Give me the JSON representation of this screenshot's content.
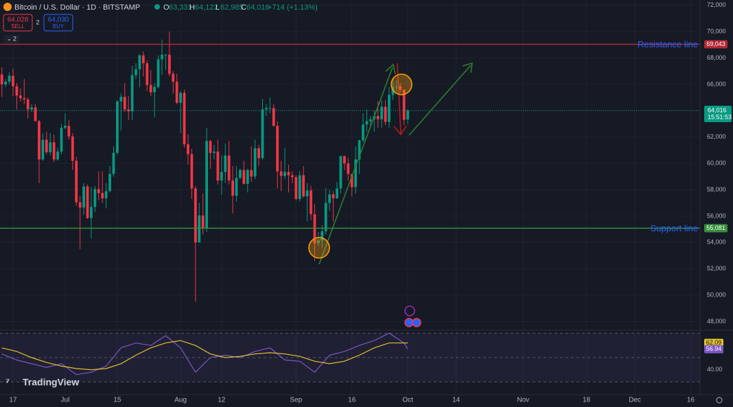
{
  "header": {
    "symbol": "Bitcoin / U.S. Dollar · 1D · BITSTAMP",
    "ohlc": [
      {
        "key": "O",
        "value": "63,331"
      },
      {
        "key": "H",
        "value": "64,122"
      },
      {
        "key": "L",
        "value": "62,985"
      },
      {
        "key": "C",
        "value": "64,016"
      }
    ],
    "change": "+714 (+1.13%)"
  },
  "trade": {
    "sell_price": "64,028",
    "sell": "SELL",
    "spread": "2",
    "buy_price": "64,030",
    "buy": "BUY"
  },
  "indicators_count": "2",
  "logo": "TradingView",
  "chart_data": [
    {
      "type": "candlestick",
      "up_color": "#089981",
      "down_color": "#f23645",
      "grid": true,
      "xlim": [
        -0.5,
        187.5
      ],
      "xticks": [
        {
          "value": 3,
          "label": "17"
        },
        {
          "value": 17,
          "label": "Jul"
        },
        {
          "value": 31,
          "label": "15"
        },
        {
          "value": 48,
          "label": "Aug"
        },
        {
          "value": 59,
          "label": "12"
        },
        {
          "value": 79,
          "label": "Sep"
        },
        {
          "value": 94,
          "label": "16"
        },
        {
          "value": 109,
          "label": "Oct"
        },
        {
          "value": 122,
          "label": "14"
        },
        {
          "value": 140,
          "label": "Nov"
        },
        {
          "value": 157,
          "label": "18"
        },
        {
          "value": 170,
          "label": "Dec"
        },
        {
          "value": 185,
          "label": "16"
        }
      ],
      "ylim": [
        47400,
        72400
      ],
      "yticks": [
        {
          "value": 72000,
          "label": "72,000"
        },
        {
          "value": 70000,
          "label": "70,000"
        },
        {
          "value": 68000,
          "label": "68,000"
        },
        {
          "value": 66000,
          "label": "66,000"
        },
        {
          "value": 64000,
          "label": "64,000"
        },
        {
          "value": 62000,
          "label": "62,000"
        },
        {
          "value": 60000,
          "label": "60,000"
        },
        {
          "value": 58000,
          "label": "58,000"
        },
        {
          "value": 56000,
          "label": "56,000"
        },
        {
          "value": 54000,
          "label": "54,000"
        },
        {
          "value": 52000,
          "label": "52,000"
        },
        {
          "value": 50000,
          "label": "50,000"
        },
        {
          "value": 48000,
          "label": "48,000"
        }
      ],
      "lines": [
        {
          "name": "Resistance line",
          "value": 69043,
          "label": "69,043",
          "color": "#b22833"
        },
        {
          "name": "Support line",
          "value": 55081,
          "label": "55,081",
          "color": "#388e3c"
        }
      ],
      "current": {
        "value": 64016,
        "label": "64,016",
        "countdown": "15:51:53",
        "color": "#089981"
      },
      "candles": [
        [
          66750,
          67300,
          65050,
          66000
        ],
        [
          66000,
          66400,
          65800,
          66200
        ],
        [
          66200,
          66900,
          66000,
          66650
        ],
        [
          66650,
          67200,
          65100,
          65850
        ],
        [
          65850,
          66100,
          64100,
          65150
        ],
        [
          65150,
          65700,
          64700,
          64950
        ],
        [
          64950,
          66400,
          64500,
          64850
        ],
        [
          64850,
          65000,
          63400,
          64100
        ],
        [
          64100,
          64500,
          63900,
          64250
        ],
        [
          64250,
          64500,
          63200,
          63200
        ],
        [
          63200,
          63300,
          58500,
          60300
        ],
        [
          60300,
          62300,
          60200,
          61800
        ],
        [
          61800,
          62400,
          60700,
          60850
        ],
        [
          60850,
          62300,
          60600,
          61600
        ],
        [
          61600,
          62200,
          60100,
          60300
        ],
        [
          60300,
          61200,
          60200,
          60900
        ],
        [
          60900,
          63000,
          60700,
          62700
        ],
        [
          62700,
          63800,
          62600,
          62850
        ],
        [
          62850,
          63300,
          61800,
          62050
        ],
        [
          62050,
          62300,
          59500,
          60200
        ],
        [
          60200,
          60500,
          56800,
          57050
        ],
        [
          57050,
          57500,
          53500,
          56650
        ],
        [
          56650,
          58500,
          56100,
          58250
        ],
        [
          58250,
          58400,
          55800,
          55850
        ],
        [
          55850,
          58200,
          54300,
          56700
        ],
        [
          56700,
          58300,
          56300,
          58050
        ],
        [
          58050,
          59400,
          57200,
          57750
        ],
        [
          57750,
          59400,
          57000,
          57350
        ],
        [
          57350,
          58500,
          56600,
          57900
        ],
        [
          57900,
          59800,
          57800,
          59200
        ],
        [
          59200,
          61300,
          59000,
          60800
        ],
        [
          60800,
          64800,
          60700,
          64700
        ],
        [
          64700,
          65300,
          62500,
          65050
        ],
        [
          65050,
          66100,
          63900,
          64100
        ],
        [
          64100,
          65100,
          63300,
          63950
        ],
        [
          63950,
          67400,
          63300,
          66700
        ],
        [
          66700,
          67600,
          66400,
          67150
        ],
        [
          67150,
          68300,
          65800,
          68200
        ],
        [
          68200,
          68500,
          66600,
          67600
        ],
        [
          67600,
          67800,
          65500,
          65950
        ],
        [
          65950,
          67100,
          65100,
          65400
        ],
        [
          65400,
          66100,
          63500,
          65800
        ],
        [
          65800,
          68200,
          65700,
          67900
        ],
        [
          67900,
          69400,
          66700,
          68250
        ],
        [
          68250,
          68300,
          67100,
          68250
        ],
        [
          68250,
          70000,
          66600,
          66800
        ],
        [
          66800,
          67000,
          65300,
          66200
        ],
        [
          66200,
          66800,
          64500,
          64600
        ],
        [
          64600,
          65500,
          62300,
          65350
        ],
        [
          65350,
          65600,
          61200,
          61450
        ],
        [
          61450,
          62200,
          59900,
          60700
        ],
        [
          60700,
          61100,
          57300,
          58100
        ],
        [
          58100,
          58300,
          49500,
          54000
        ],
        [
          54000,
          57000,
          54000,
          56050
        ],
        [
          56050,
          57700,
          54600,
          55100
        ],
        [
          55100,
          62700,
          54800,
          61700
        ],
        [
          61700,
          61800,
          59600,
          60800
        ],
        [
          60800,
          61400,
          60300,
          60900
        ],
        [
          60900,
          61800,
          58400,
          58700
        ],
        [
          58700,
          60600,
          57600,
          59350
        ],
        [
          59350,
          61500,
          58500,
          60600
        ],
        [
          60600,
          61700,
          58400,
          58700
        ],
        [
          58700,
          59800,
          56200,
          57550
        ],
        [
          57550,
          59800,
          57100,
          58900
        ],
        [
          58900,
          59600,
          58800,
          59500
        ],
        [
          59500,
          60200,
          58400,
          58450
        ],
        [
          58450,
          59600,
          57800,
          59500
        ],
        [
          59500,
          61300,
          58600,
          59000
        ],
        [
          59000,
          61800,
          58800,
          61150
        ],
        [
          61150,
          61400,
          59800,
          60400
        ],
        [
          60400,
          64900,
          60300,
          64100
        ],
        [
          64100,
          64500,
          63600,
          64200
        ],
        [
          64200,
          65000,
          63800,
          64200
        ],
        [
          64200,
          64500,
          62800,
          62850
        ],
        [
          62850,
          63200,
          58100,
          59400
        ],
        [
          59400,
          60200,
          57900,
          59050
        ],
        [
          59050,
          61200,
          58800,
          59350
        ],
        [
          59350,
          59900,
          57800,
          59100
        ],
        [
          59100,
          59400,
          58500,
          58950
        ],
        [
          58950,
          59100,
          57200,
          57300
        ],
        [
          57300,
          59400,
          57100,
          59100
        ],
        [
          59100,
          59800,
          57400,
          57500
        ],
        [
          57500,
          58500,
          55600,
          57950
        ],
        [
          57950,
          58300,
          55700,
          56150
        ],
        [
          56150,
          56900,
          52600,
          53950
        ],
        [
          53950,
          54800,
          53700,
          54150
        ],
        [
          54150,
          55300,
          53600,
          54850
        ],
        [
          54850,
          58100,
          54600,
          57000
        ],
        [
          57000,
          58000,
          56400,
          57650
        ],
        [
          57650,
          57900,
          55600,
          57350
        ],
        [
          57350,
          58600,
          57300,
          58100
        ],
        [
          58100,
          60600,
          57700,
          60550
        ],
        [
          60550,
          60600,
          59500,
          60000
        ],
        [
          60000,
          60400,
          58700,
          59200
        ],
        [
          59200,
          59200,
          57500,
          58200
        ],
        [
          58200,
          61300,
          57700,
          60300
        ],
        [
          60300,
          61800,
          59200,
          61750
        ],
        [
          61750,
          63800,
          61600,
          62950
        ],
        [
          62950,
          64100,
          62400,
          63200
        ],
        [
          63200,
          63600,
          62700,
          63350
        ],
        [
          63350,
          64000,
          62400,
          63600
        ],
        [
          63600,
          64700,
          62700,
          63350
        ],
        [
          63350,
          64800,
          62700,
          64300
        ],
        [
          64300,
          64800,
          62900,
          63150
        ],
        [
          63150,
          65800,
          62700,
          65200
        ],
        [
          65200,
          66500,
          64800,
          65800
        ],
        [
          65800,
          66300,
          65400,
          65850
        ],
        [
          65850,
          66100,
          65400,
          65600
        ],
        [
          65600,
          65600,
          62900,
          63300
        ],
        [
          63331,
          64122,
          62985,
          64016
        ]
      ]
    },
    {
      "type": "line",
      "xlim": [
        -0.5,
        187.5
      ],
      "ylim": [
        28,
        72
      ],
      "yticks": [
        {
          "value": 40,
          "label": "40.00"
        }
      ],
      "levels": [
        70,
        50,
        30
      ],
      "x": [
        0,
        4,
        8,
        12,
        16,
        20,
        24,
        28,
        32,
        36,
        40,
        44,
        48,
        52,
        56,
        60,
        64,
        68,
        72,
        76,
        80,
        84,
        88,
        92,
        96,
        100,
        104,
        108,
        109
      ],
      "series": [
        {
          "name": "RSI",
          "color": "#7e57c2",
          "values": [
            53,
            48,
            45,
            42,
            45,
            36,
            38,
            43,
            58,
            62,
            60,
            68,
            58,
            38,
            50,
            52,
            50,
            55,
            58,
            48,
            47,
            38,
            52,
            55,
            60,
            64,
            70,
            62,
            56.94
          ]
        },
        {
          "name": "RSI-based MA",
          "color": "#e5c22b",
          "values": [
            58,
            55,
            50,
            46,
            43,
            41,
            40,
            41,
            45,
            52,
            58,
            62,
            64,
            60,
            53,
            50,
            51,
            53,
            54,
            53,
            51,
            47,
            45,
            47,
            52,
            58,
            62,
            62,
            62.09
          ]
        }
      ],
      "badges": [
        {
          "value": 62.09,
          "label": "62.09",
          "color": "#e5c22b",
          "text_color": "#131722"
        },
        {
          "value": 56.94,
          "label": "56.94",
          "color": "#7e57c2",
          "text_color": "#ffffff"
        }
      ]
    }
  ]
}
